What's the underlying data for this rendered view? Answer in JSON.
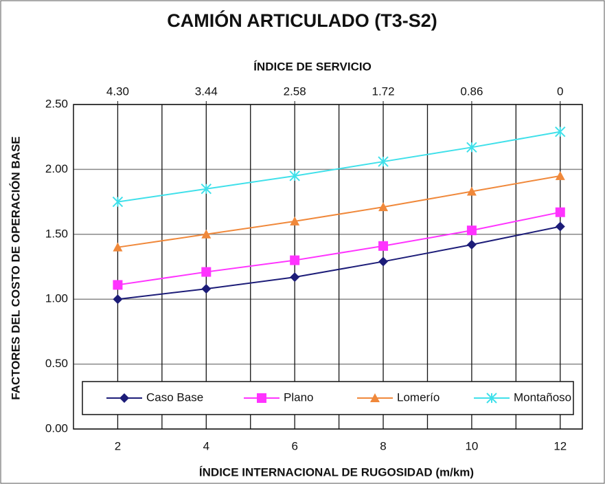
{
  "chart_data": {
    "type": "line",
    "title": "CAMIÓN ARTICULADO  (T3-S2)",
    "x2_label": "ÍNDICE DE SERVICIO",
    "xlabel": "ÍNDICE INTERNACIONAL  DE RUGOSIDAD (m/km)",
    "ylabel": "FACTORES DEL COSTO DE OPERACIÓN BASE",
    "x": [
      2,
      4,
      6,
      8,
      10,
      12
    ],
    "xlim": [
      1,
      12.5
    ],
    "xticks": [
      2,
      4,
      6,
      8,
      10,
      12
    ],
    "x_minor_gridlines": [
      3,
      5,
      7,
      9,
      11
    ],
    "x2lim": [
      4.73,
      -0.215
    ],
    "x2ticks": [
      {
        "value": 4.3,
        "label": "4.30"
      },
      {
        "value": 3.44,
        "label": "3.44"
      },
      {
        "value": 2.58,
        "label": "2.58"
      },
      {
        "value": 1.72,
        "label": "1.72"
      },
      {
        "value": 0.86,
        "label": "0.86"
      },
      0
    ],
    "ylim": [
      0,
      2.5
    ],
    "yticks": [
      {
        "value": 0,
        "label": "0.00"
      },
      {
        "value": 0.5,
        "label": "0.50"
      },
      {
        "value": 1,
        "label": "1.00"
      },
      {
        "value": 1.5,
        "label": "1.50"
      },
      {
        "value": 2,
        "label": "2.00"
      },
      {
        "value": 2.5,
        "label": "2.50"
      }
    ],
    "grid": true,
    "legend": "bottom",
    "series": [
      {
        "name": "Caso Base",
        "color": "#1c1c78",
        "marker": "diamond",
        "values": [
          1.0,
          1.08,
          1.17,
          1.29,
          1.42,
          1.56
        ]
      },
      {
        "name": "Plano",
        "color": "#ff33ff",
        "marker": "square",
        "values": [
          1.11,
          1.21,
          1.3,
          1.41,
          1.53,
          1.67
        ]
      },
      {
        "name": "Lomerío",
        "color": "#f0883a",
        "marker": "triangle",
        "values": [
          1.4,
          1.5,
          1.6,
          1.71,
          1.83,
          1.95
        ]
      },
      {
        "name": "Montañoso",
        "color": "#3fe0ea",
        "marker": "asterisk",
        "values": [
          1.75,
          1.85,
          1.95,
          2.06,
          2.17,
          2.29
        ]
      }
    ]
  }
}
